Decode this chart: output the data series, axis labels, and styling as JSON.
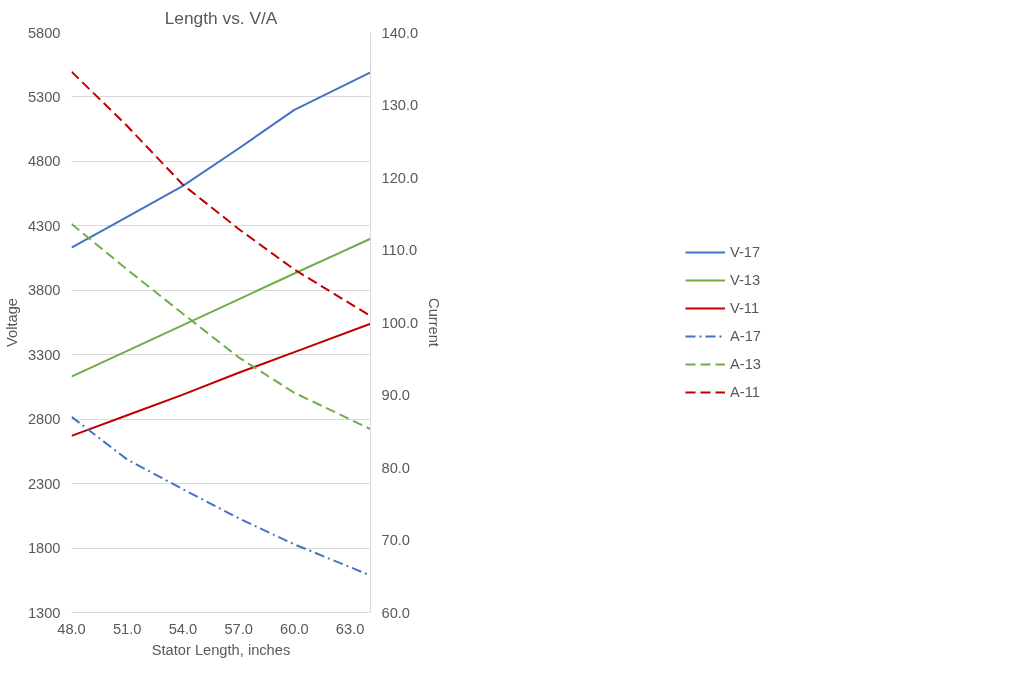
{
  "chart_data": {
    "type": "line",
    "title": "Length vs. V/A",
    "xlabel": "Stator Length, inches",
    "ylabel": "Voltage",
    "y2label": "Current",
    "x": [
      48,
      51,
      54,
      57,
      60,
      64.1
    ],
    "xlim": [
      48,
      64.1
    ],
    "xticks": [
      {
        "value": 48,
        "label": "48.0"
      },
      {
        "value": 51,
        "label": "51.0"
      },
      {
        "value": 54,
        "label": "54.0"
      },
      {
        "value": 57,
        "label": "57.0"
      },
      {
        "value": 60,
        "label": "60.0"
      },
      {
        "value": 63,
        "label": "63.0"
      }
    ],
    "ylim": [
      1300,
      5800
    ],
    "yticks": [
      1300,
      1800,
      2300,
      2800,
      3300,
      3800,
      4300,
      4800,
      5300,
      5800
    ],
    "y2lim": [
      60,
      140
    ],
    "y2ticks": [
      {
        "value": 60,
        "label": "60.0"
      },
      {
        "value": 70,
        "label": "70.0"
      },
      {
        "value": 80,
        "label": "80.0"
      },
      {
        "value": 90,
        "label": "90.0"
      },
      {
        "value": 100,
        "label": "100.0"
      },
      {
        "value": 110,
        "label": "110.0"
      },
      {
        "value": 120,
        "label": "120.0"
      },
      {
        "value": 130,
        "label": "130.0"
      },
      {
        "value": 140,
        "label": "140.0"
      }
    ],
    "grid": "y",
    "legend": "right",
    "marker": "none",
    "series": [
      {
        "name": "V-17",
        "color": "#4472c4",
        "line_style": "solid",
        "values": [
          4130,
          4370,
          4610,
          4900,
          5200,
          5490
        ]
      },
      {
        "name": "V-13",
        "color": "#70ad47",
        "line_style": "solid",
        "values": [
          3130,
          3330,
          3530,
          3730,
          3930,
          4200
        ]
      },
      {
        "name": "V-11",
        "color": "#c00000",
        "line_style": "solid",
        "values": [
          2670,
          2830,
          2990,
          3160,
          3320,
          3540
        ]
      },
      {
        "name": "A-17",
        "color": "#4472c4",
        "line_style": "dashdot",
        "axis": "y2",
        "values": [
          87.0,
          81.1,
          77.0,
          73.0,
          69.4,
          65.1
        ]
      },
      {
        "name": "A-13",
        "color": "#70ad47",
        "line_style": "dashed",
        "axis": "y2",
        "values": [
          113.6,
          107.3,
          101.2,
          95.2,
          90.3,
          85.3
        ]
      },
      {
        "name": "A-11",
        "color": "#c00000",
        "line_style": "dashed",
        "axis": "y2",
        "values": [
          134.6,
          127.1,
          119.0,
          112.9,
          107.3,
          100.9
        ]
      }
    ]
  }
}
